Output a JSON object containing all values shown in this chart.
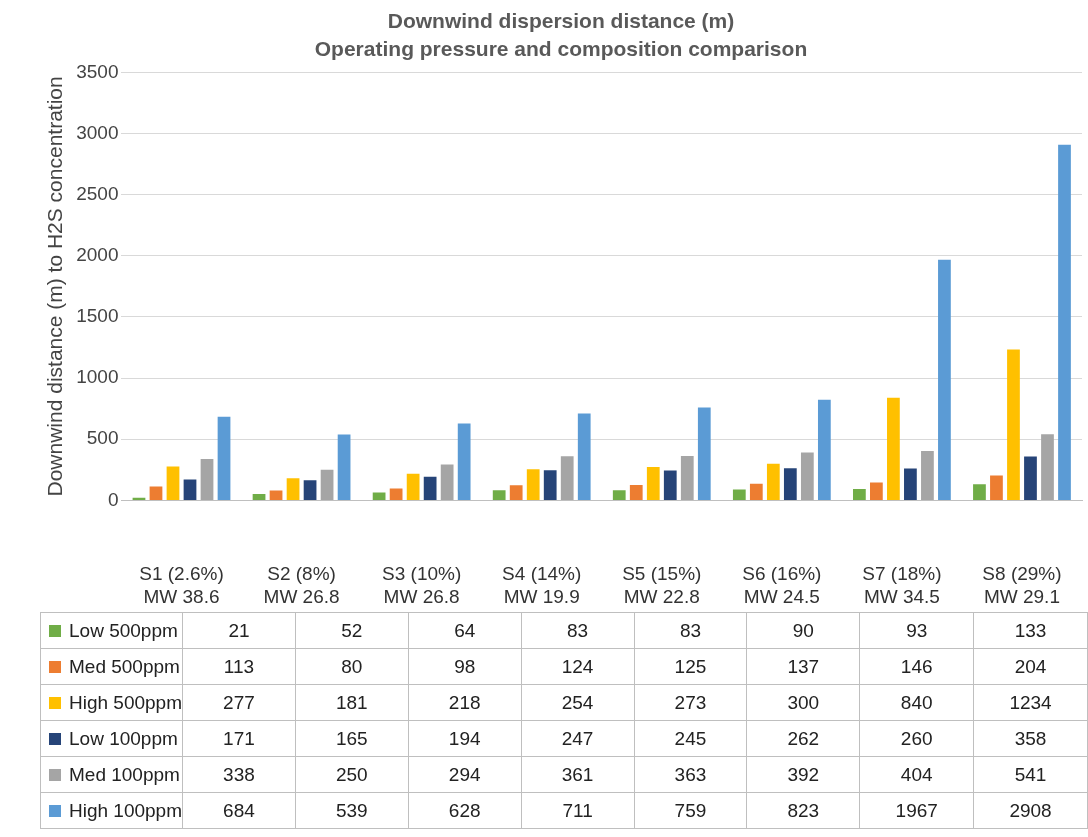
{
  "chart_data": {
    "type": "bar",
    "title": "Downwind dispersion distance (m)",
    "subtitle": "Operating pressure and composition comparison",
    "ylabel": "Downwind distance (m) to H2S concentration",
    "categories": [
      "S1 (2.6%)\nMW 38.6",
      "S2 (8%)\nMW 26.8",
      "S3 (10%)\nMW 26.8",
      "S4 (14%)\nMW 19.9",
      "S5 (15%)\nMW 22.8",
      "S6 (16%)\nMW 24.5",
      "S7 (18%)\nMW 34.5",
      "S8 (29%)\nMW 29.1"
    ],
    "series": [
      {
        "name": "Low 500ppm",
        "color": "#70ad47",
        "values": [
          21,
          52,
          64,
          83,
          83,
          90,
          93,
          133
        ]
      },
      {
        "name": "Med 500ppm",
        "color": "#ed7d31",
        "values": [
          113,
          80,
          98,
          124,
          125,
          137,
          146,
          204
        ]
      },
      {
        "name": "High 500ppm",
        "color": "#ffc000",
        "values": [
          277,
          181,
          218,
          254,
          273,
          300,
          840,
          1234
        ]
      },
      {
        "name": "Low 100ppm",
        "color": "#264478",
        "values": [
          171,
          165,
          194,
          247,
          245,
          262,
          260,
          358
        ]
      },
      {
        "name": "Med 100ppm",
        "color": "#a5a5a5",
        "values": [
          338,
          250,
          294,
          361,
          363,
          392,
          404,
          541
        ]
      },
      {
        "name": "High 100ppm",
        "color": "#5b9bd5",
        "values": [
          684,
          539,
          628,
          711,
          759,
          823,
          1967,
          2908
        ]
      }
    ],
    "ylim": [
      0,
      3500
    ],
    "yticks": [
      0,
      500,
      1000,
      1500,
      2000,
      2500,
      3000,
      3500
    ],
    "grid": "y",
    "legend": "bottom",
    "data_labels": true
  }
}
